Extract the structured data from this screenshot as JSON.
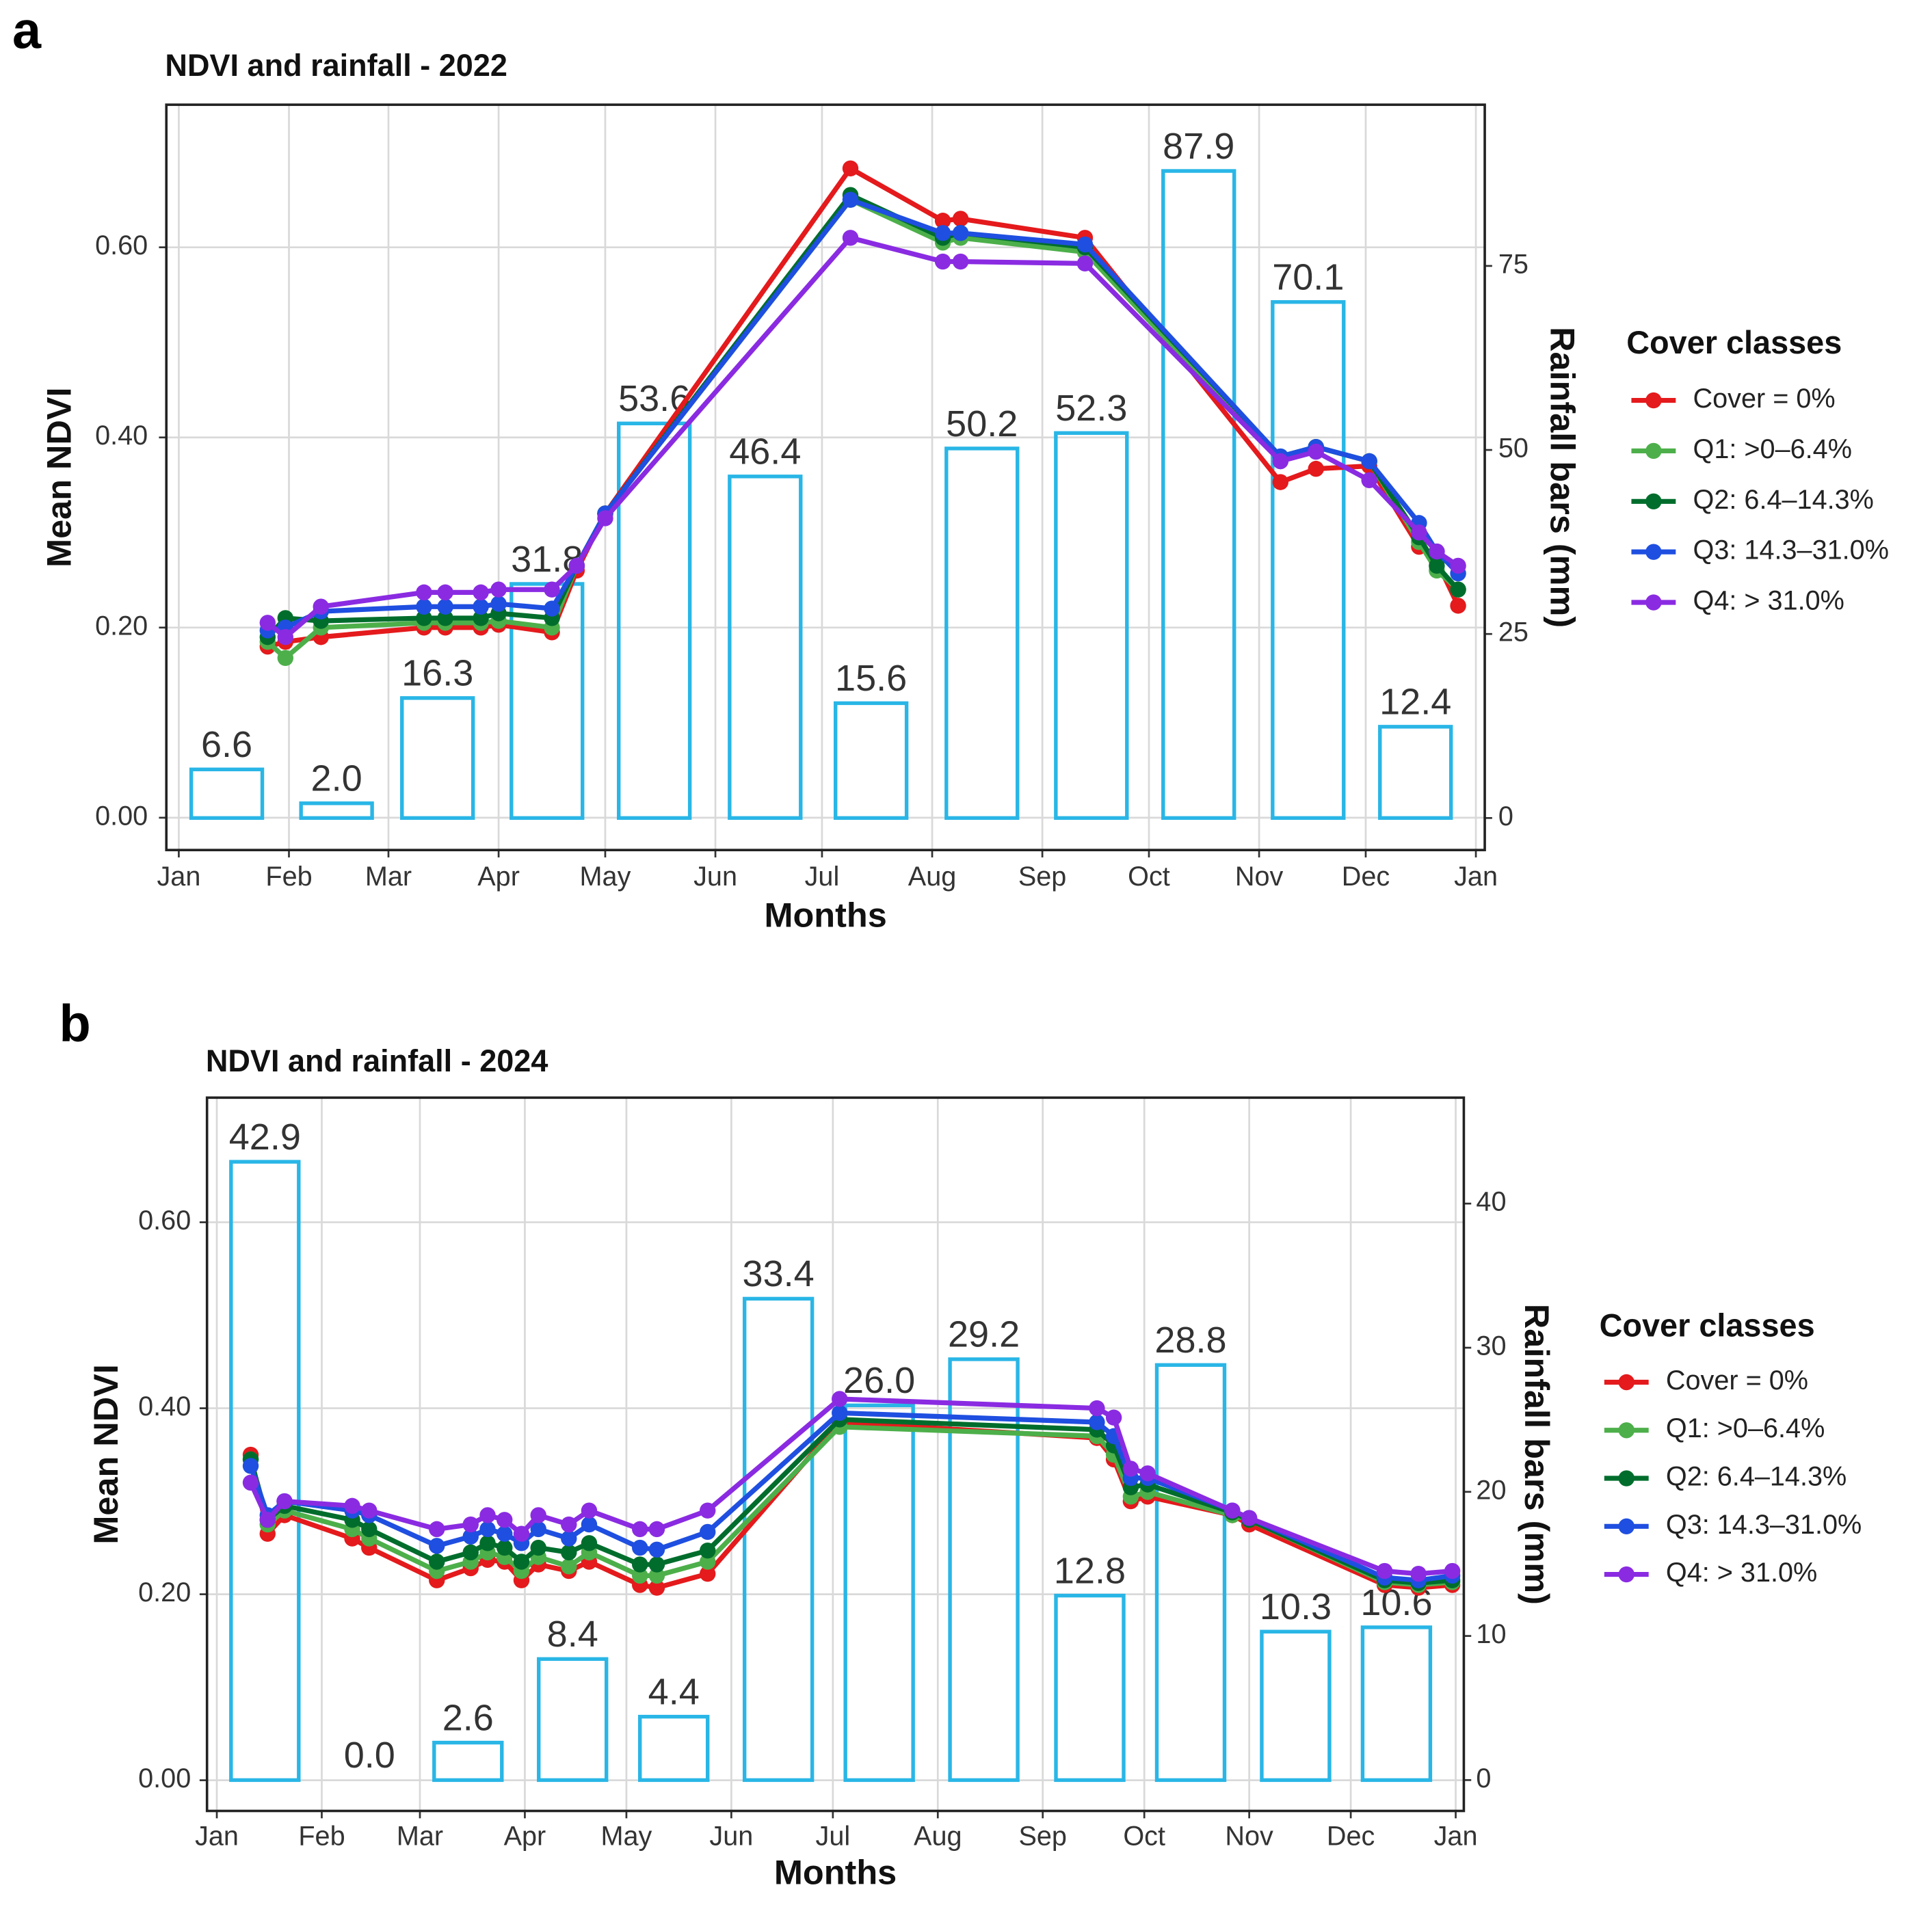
{
  "chart_data": [
    {
      "type": "combo",
      "panel": "a",
      "title": "NDVI and rainfall - 2022",
      "x_label": "Months",
      "y_label": "Mean NDVI",
      "y2_label": "Rainfall bars (mm)",
      "legend_title": "Cover classes",
      "legend": "right",
      "grid": true,
      "xlim": [
        -3.5,
        367.5
      ],
      "xticks": [
        {
          "value": 0,
          "label": "Jan"
        },
        {
          "value": 31,
          "label": "Feb"
        },
        {
          "value": 59,
          "label": "Mar"
        },
        {
          "value": 90,
          "label": "Apr"
        },
        {
          "value": 120,
          "label": "May"
        },
        {
          "value": 151,
          "label": "Jun"
        },
        {
          "value": 181,
          "label": "Jul"
        },
        {
          "value": 212,
          "label": "Aug"
        },
        {
          "value": 243,
          "label": "Sep"
        },
        {
          "value": 273,
          "label": "Oct"
        },
        {
          "value": 304,
          "label": "Nov"
        },
        {
          "value": 334,
          "label": "Dec"
        },
        {
          "value": 365,
          "label": "Jan"
        }
      ],
      "ylim": [
        -0.034,
        0.75
      ],
      "yticks": [
        {
          "value": 0,
          "label": "0.00"
        },
        {
          "value": 0.2,
          "label": "0.20"
        },
        {
          "value": 0.4,
          "label": "0.40"
        },
        {
          "value": 0.6,
          "label": "0.60"
        }
      ],
      "y2lim": [
        -4.35,
        96.9
      ],
      "y2ticks": [
        0,
        25,
        50,
        75
      ],
      "series": [
        {
          "type": "bar",
          "axis": "y2",
          "color": "#29b6e6",
          "x": [
            13.5,
            44.4,
            72.8,
            103.6,
            133.8,
            165,
            194.8,
            226,
            256.8,
            287,
            317.8,
            348
          ],
          "values": [
            6.6,
            2.0,
            16.3,
            31.8,
            53.6,
            46.4,
            15.6,
            50.2,
            52.3,
            87.9,
            70.1,
            12.4
          ],
          "value_labels": [
            "6.6",
            "2.0",
            "16.3",
            "31.8",
            "53.6",
            "46.4",
            "15.6",
            "50.2",
            "52.3",
            "87.9",
            "70.1",
            "12.4"
          ]
        },
        {
          "type": "line",
          "name": "Cover = 0%",
          "color": "#e41a1c",
          "x": [
            25,
            30,
            40,
            69,
            75,
            85,
            90,
            105,
            112,
            120,
            189,
            215,
            220,
            255,
            310,
            320,
            335,
            349,
            354,
            360
          ],
          "values": [
            0.18,
            0.185,
            0.19,
            0.2,
            0.2,
            0.2,
            0.203,
            0.195,
            0.26,
            0.32,
            0.683,
            0.628,
            0.63,
            0.61,
            0.353,
            0.367,
            0.37,
            0.285,
            0.27,
            0.223
          ]
        },
        {
          "type": "line",
          "name": "Q1: >0–6.4%",
          "color": "#4daf4a",
          "x": [
            25,
            30,
            40,
            69,
            75,
            85,
            90,
            105,
            112,
            120,
            189,
            215,
            220,
            255,
            310,
            320,
            335,
            349,
            354,
            360
          ],
          "values": [
            0.185,
            0.168,
            0.2,
            0.205,
            0.205,
            0.205,
            0.207,
            0.2,
            0.265,
            0.32,
            0.65,
            0.605,
            0.61,
            0.595,
            0.375,
            0.39,
            0.375,
            0.29,
            0.26,
            0.24
          ]
        },
        {
          "type": "line",
          "name": "Q2: 6.4–14.3%",
          "color": "#006d2c",
          "x": [
            25,
            30,
            40,
            69,
            75,
            85,
            90,
            105,
            112,
            120,
            189,
            215,
            220,
            255,
            310,
            320,
            335,
            349,
            354,
            360
          ],
          "values": [
            0.19,
            0.21,
            0.207,
            0.21,
            0.21,
            0.21,
            0.215,
            0.21,
            0.265,
            0.32,
            0.655,
            0.61,
            0.615,
            0.6,
            0.38,
            0.39,
            0.375,
            0.295,
            0.265,
            0.24
          ]
        },
        {
          "type": "line",
          "name": "Q3: 14.3–31.0%",
          "color": "#1f4fe0",
          "x": [
            25,
            30,
            40,
            69,
            75,
            85,
            90,
            105,
            112,
            120,
            189,
            215,
            220,
            255,
            310,
            320,
            335,
            349,
            354,
            360
          ],
          "values": [
            0.197,
            0.2,
            0.217,
            0.222,
            0.222,
            0.222,
            0.225,
            0.22,
            0.265,
            0.32,
            0.65,
            0.615,
            0.615,
            0.603,
            0.38,
            0.39,
            0.375,
            0.31,
            0.28,
            0.257
          ]
        },
        {
          "type": "line",
          "name": "Q4: > 31.0%",
          "color": "#8a2be2",
          "x": [
            25,
            30,
            40,
            69,
            75,
            85,
            90,
            105,
            112,
            120,
            189,
            215,
            220,
            255,
            310,
            320,
            335,
            349,
            354,
            360
          ],
          "values": [
            0.205,
            0.19,
            0.222,
            0.237,
            0.237,
            0.237,
            0.24,
            0.24,
            0.265,
            0.315,
            0.61,
            0.585,
            0.585,
            0.583,
            0.375,
            0.385,
            0.355,
            0.3,
            0.28,
            0.265
          ]
        }
      ]
    },
    {
      "type": "combo",
      "panel": "b",
      "title": "NDVI and rainfall - 2024",
      "x_label": "Months",
      "y_label": "Mean NDVI",
      "y2_label": "Rainfall bars (mm)",
      "legend_title": "Cover classes",
      "legend": "right",
      "grid": true,
      "xlim": [
        -2.9,
        368.4
      ],
      "xticks": [
        {
          "value": 0,
          "label": "Jan"
        },
        {
          "value": 31,
          "label": "Feb"
        },
        {
          "value": 60,
          "label": "Mar"
        },
        {
          "value": 91,
          "label": "Apr"
        },
        {
          "value": 121,
          "label": "May"
        },
        {
          "value": 152,
          "label": "Jun"
        },
        {
          "value": 182,
          "label": "Jul"
        },
        {
          "value": 213,
          "label": "Aug"
        },
        {
          "value": 244,
          "label": "Sep"
        },
        {
          "value": 274,
          "label": "Oct"
        },
        {
          "value": 305,
          "label": "Nov"
        },
        {
          "value": 335,
          "label": "Dec"
        },
        {
          "value": 366,
          "label": "Jan"
        }
      ],
      "ylim": [
        -0.033,
        0.734
      ],
      "yticks": [
        {
          "value": 0,
          "label": "0.00"
        },
        {
          "value": 0.2,
          "label": "0.20"
        },
        {
          "value": 0.4,
          "label": "0.40"
        },
        {
          "value": 0.6,
          "label": "0.60"
        }
      ],
      "y2lim": [
        -2.14,
        47.35
      ],
      "y2ticks": [
        0,
        10,
        20,
        30,
        40
      ],
      "series": [
        {
          "type": "bar",
          "axis": "y2",
          "color": "#29b6e6",
          "x": [
            14.2,
            45.1,
            74.2,
            105.1,
            135,
            165.9,
            195.7,
            226.6,
            257.9,
            287.7,
            318.7,
            348.5
          ],
          "values": [
            42.9,
            0.0,
            2.6,
            8.4,
            4.4,
            33.4,
            26.0,
            29.2,
            12.8,
            28.8,
            10.3,
            10.6
          ],
          "value_labels": [
            "42.9",
            "0.0",
            "2.6",
            "8.4",
            "4.4",
            "33.4",
            "26.0",
            "29.2",
            "12.8",
            "28.8",
            "10.3",
            "10.6"
          ]
        },
        {
          "type": "line",
          "name": "Cover = 0%",
          "color": "#e41a1c",
          "x": [
            10,
            15,
            20,
            40,
            45,
            65,
            75,
            80,
            85,
            90,
            95,
            104,
            110,
            125,
            130,
            145,
            184,
            260,
            265,
            270,
            275,
            300,
            305,
            345,
            355,
            365
          ],
          "values": [
            0.35,
            0.265,
            0.285,
            0.26,
            0.25,
            0.215,
            0.228,
            0.237,
            0.235,
            0.215,
            0.232,
            0.225,
            0.235,
            0.21,
            0.207,
            0.222,
            0.385,
            0.368,
            0.345,
            0.3,
            0.305,
            0.285,
            0.275,
            0.21,
            0.207,
            0.21
          ]
        },
        {
          "type": "line",
          "name": "Q1: >0–6.4%",
          "color": "#4daf4a",
          "x": [
            10,
            15,
            20,
            40,
            45,
            65,
            75,
            80,
            85,
            90,
            95,
            104,
            110,
            125,
            130,
            145,
            184,
            260,
            265,
            270,
            275,
            300,
            305,
            345,
            355,
            365
          ],
          "values": [
            0.345,
            0.275,
            0.29,
            0.27,
            0.26,
            0.225,
            0.235,
            0.245,
            0.24,
            0.225,
            0.24,
            0.23,
            0.245,
            0.22,
            0.22,
            0.235,
            0.38,
            0.37,
            0.35,
            0.305,
            0.31,
            0.285,
            0.28,
            0.213,
            0.21,
            0.213
          ]
        },
        {
          "type": "line",
          "name": "Q2: 6.4–14.3%",
          "color": "#006d2c",
          "x": [
            10,
            15,
            20,
            40,
            45,
            65,
            75,
            80,
            85,
            90,
            95,
            104,
            110,
            125,
            130,
            145,
            184,
            260,
            265,
            270,
            275,
            300,
            305,
            345,
            355,
            365
          ],
          "values": [
            0.345,
            0.28,
            0.295,
            0.28,
            0.27,
            0.235,
            0.245,
            0.255,
            0.25,
            0.235,
            0.25,
            0.245,
            0.255,
            0.232,
            0.232,
            0.247,
            0.388,
            0.377,
            0.36,
            0.315,
            0.318,
            0.288,
            0.28,
            0.215,
            0.212,
            0.215
          ]
        },
        {
          "type": "line",
          "name": "Q3: 14.3–31.0%",
          "color": "#1f4fe0",
          "x": [
            10,
            15,
            20,
            40,
            45,
            65,
            75,
            80,
            85,
            90,
            95,
            104,
            110,
            125,
            130,
            145,
            184,
            260,
            265,
            270,
            275,
            300,
            305,
            345,
            355,
            365
          ],
          "values": [
            0.338,
            0.285,
            0.3,
            0.29,
            0.285,
            0.252,
            0.262,
            0.27,
            0.265,
            0.255,
            0.27,
            0.26,
            0.275,
            0.25,
            0.248,
            0.267,
            0.395,
            0.385,
            0.37,
            0.325,
            0.325,
            0.29,
            0.282,
            0.218,
            0.215,
            0.22
          ]
        },
        {
          "type": "line",
          "name": "Q4: > 31.0%",
          "color": "#8a2be2",
          "x": [
            10,
            15,
            20,
            40,
            45,
            65,
            75,
            80,
            85,
            90,
            95,
            104,
            110,
            125,
            130,
            145,
            184,
            260,
            265,
            270,
            275,
            300,
            305,
            345,
            355,
            365
          ],
          "values": [
            0.32,
            0.28,
            0.3,
            0.295,
            0.29,
            0.27,
            0.275,
            0.285,
            0.28,
            0.265,
            0.285,
            0.275,
            0.29,
            0.27,
            0.27,
            0.29,
            0.41,
            0.4,
            0.39,
            0.335,
            0.33,
            0.29,
            0.282,
            0.225,
            0.222,
            0.225
          ]
        }
      ]
    }
  ]
}
